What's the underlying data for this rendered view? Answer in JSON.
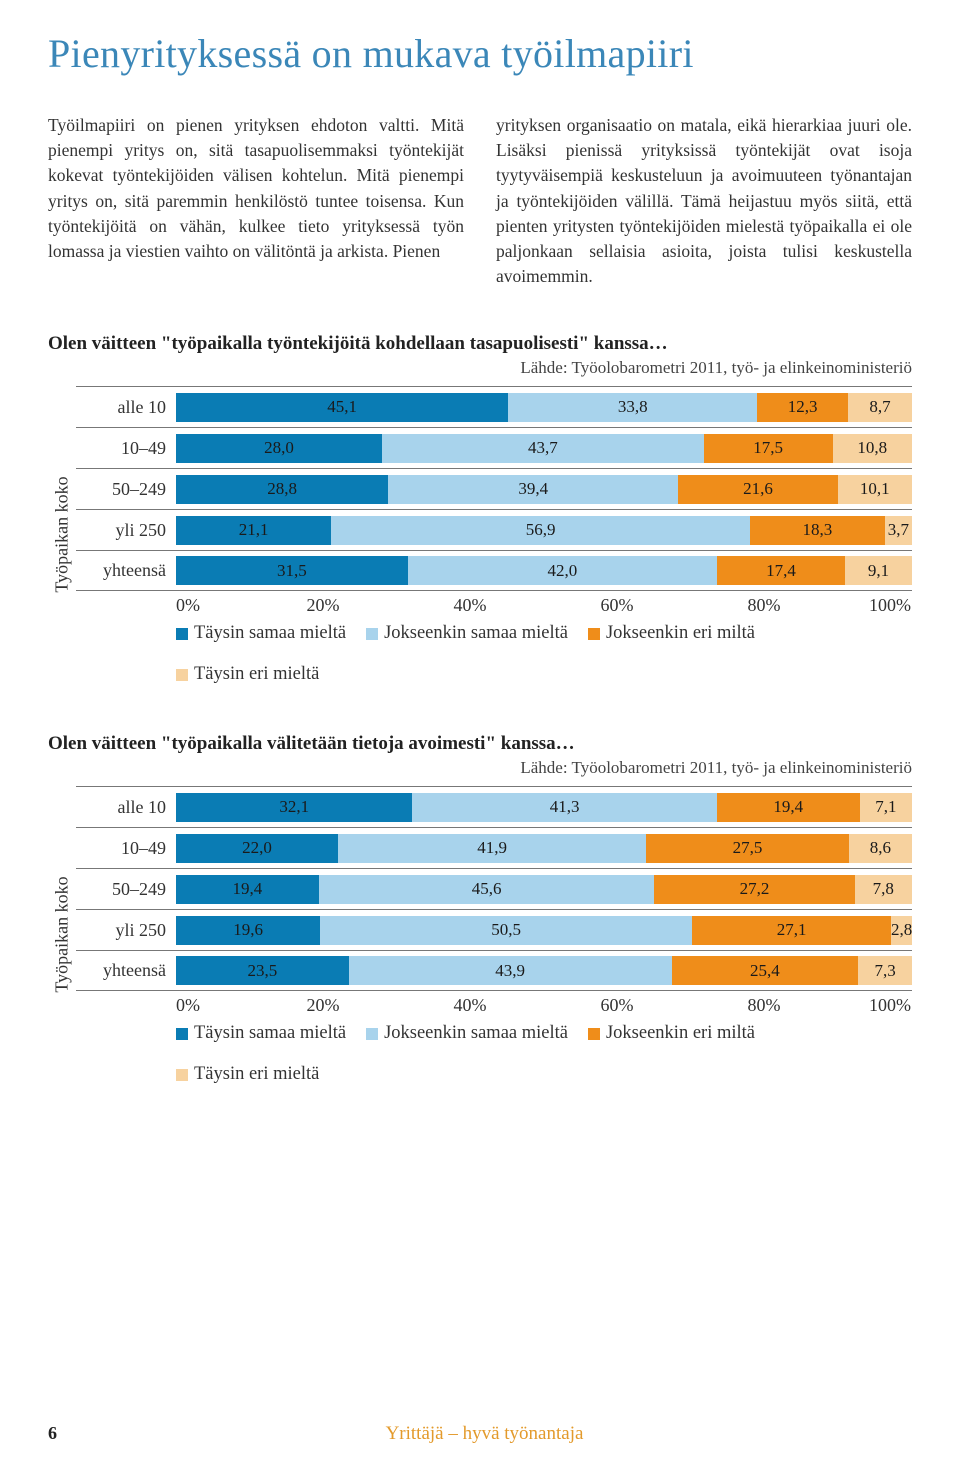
{
  "title": "Pienyrityksessä on mukava työilmapiiri",
  "paragraphs": {
    "left": "Työilmapiiri on pienen yrityksen ehdoton valtti. Mitä pienempi yritys on, sitä tasapuolisemmaksi työntekijät kokevat työntekijöiden välisen kohtelun. Mitä pienempi yritys on, sitä paremmin henkilöstö tuntee toisensa. Kun työntekijöitä on vähän, kulkee tieto yrityksessä työn lomassa ja viestien vaihto on välitöntä ja arkista. Pienen",
    "right": "yrityksen organisaatio on matala, eikä hierarkiaa juuri ole. Lisäksi pienissä yrityksissä työntekijät ovat isoja tyytyväisempiä keskusteluun ja avoimuuteen työnantajan ja työntekijöiden välillä. Tämä heijastuu myös siitä, että pienten yritysten työntekijöiden mielestä työpaikalla ei ole paljonkaan sellaisia asioita, joista tulisi keskustella avoimemmin."
  },
  "chart1": {
    "title": "Olen väitteen \"työpaikalla työntekijöitä kohdellaan tasapuolisesti\" kanssa…",
    "source": "Lähde: Työolobarometri 2011, työ- ja elinkeinoministeriö",
    "y_axis_label": "Työpaikan koko",
    "categories": [
      "alle 10",
      "10–49",
      "50–249",
      "yli 250",
      "yhteensä"
    ],
    "series_labels": [
      "Täysin samaa mieltä",
      "Jokseenkin samaa mieltä",
      "Jokseenkin eri miltä",
      "Täysin eri mieltä"
    ],
    "series_colors": [
      "#0a7cb4",
      "#a8d3ec",
      "#ef8d1a",
      "#f7d29f"
    ],
    "rows": [
      [
        45.1,
        33.8,
        12.3,
        8.7
      ],
      [
        28.0,
        43.7,
        17.5,
        10.8
      ],
      [
        28.8,
        39.4,
        21.6,
        10.1
      ],
      [
        21.1,
        56.9,
        18.3,
        3.7
      ],
      [
        31.5,
        42.0,
        17.4,
        9.1
      ]
    ],
    "row_display": [
      [
        "45,1",
        "33,8",
        "12,3",
        "8,7"
      ],
      [
        "28,0",
        "43,7",
        "17,5",
        "10,8"
      ],
      [
        "28,8",
        "39,4",
        "21,6",
        "10,1"
      ],
      [
        "21,1",
        "56,9",
        "18,3",
        "3,7"
      ],
      [
        "31,5",
        "42,0",
        "17,4",
        "9,1"
      ]
    ],
    "x_ticks": [
      "0%",
      "20%",
      "40%",
      "60%",
      "80%",
      "100%"
    ]
  },
  "chart2": {
    "title": "Olen väitteen \"työpaikalla välitetään tietoja avoimesti\" kanssa…",
    "source": "Lähde: Työolobarometri 2011, työ- ja elinkeinoministeriö",
    "y_axis_label": "Työpaikan koko",
    "categories": [
      "alle 10",
      "10–49",
      "50–249",
      "yli 250",
      "yhteensä"
    ],
    "series_labels": [
      "Täysin samaa mieltä",
      "Jokseenkin samaa mieltä",
      "Jokseenkin eri miltä",
      "Täysin eri mieltä"
    ],
    "series_colors": [
      "#0a7cb4",
      "#a8d3ec",
      "#ef8d1a",
      "#f7d29f"
    ],
    "rows": [
      [
        32.1,
        41.3,
        19.4,
        7.1
      ],
      [
        22.0,
        41.9,
        27.5,
        8.6
      ],
      [
        19.4,
        45.6,
        27.2,
        7.8
      ],
      [
        19.6,
        50.5,
        27.1,
        2.8
      ],
      [
        23.5,
        43.9,
        25.4,
        7.3
      ]
    ],
    "row_display": [
      [
        "32,1",
        "41,3",
        "19,4",
        "7,1"
      ],
      [
        "22,0",
        "41,9",
        "27,5",
        "8,6"
      ],
      [
        "19,4",
        "45,6",
        "27,2",
        "7,8"
      ],
      [
        "19,6",
        "50,5",
        "27,1",
        "2,8"
      ],
      [
        "23,5",
        "43,9",
        "25,4",
        "7,3"
      ]
    ],
    "x_ticks": [
      "0%",
      "20%",
      "40%",
      "60%",
      "80%",
      "100%"
    ]
  },
  "footer": {
    "page_number": "6",
    "publication": "Yrittäjä – hyvä työnantaja"
  }
}
